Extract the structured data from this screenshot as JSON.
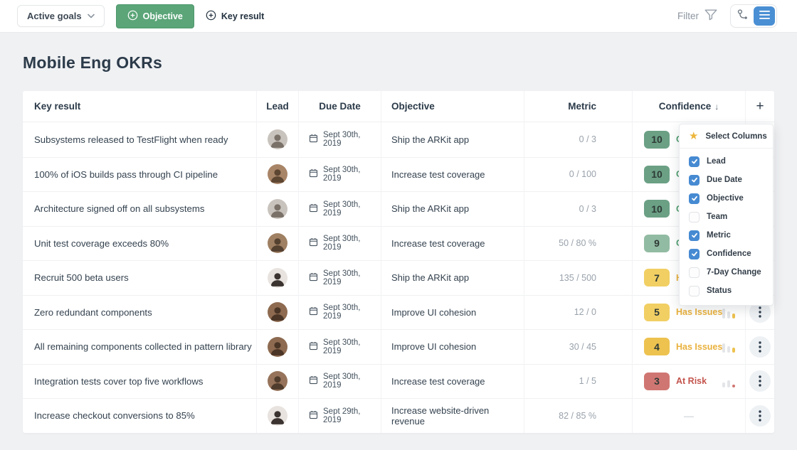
{
  "toolbar": {
    "scope_selector": "Active goals",
    "objective_button": "Objective",
    "key_result_button": "Key result",
    "filter_label": "Filter"
  },
  "page": {
    "title": "Mobile Eng OKRs"
  },
  "table": {
    "columns": {
      "key_result": "Key result",
      "lead": "Lead",
      "due_date": "Due Date",
      "objective": "Objective",
      "metric": "Metric",
      "confidence": "Confidence"
    },
    "sort": {
      "column": "Confidence",
      "direction": "desc",
      "indicator": "↓"
    },
    "add_column_label": "+",
    "empty_value": "—",
    "rows": [
      {
        "key_result": "Subsystems released to TestFlight when ready",
        "due_date": "Sept 30th, 2019",
        "objective": "Ship the ARKit app",
        "metric": "0 / 3",
        "confidence": "10",
        "confidence_color": "#6ba085",
        "status": "On Track",
        "status_color": "#4f9e6e",
        "trend": [
          14,
          10,
          7
        ],
        "trend_color": "#6ba085",
        "avatar": {
          "bg": "#c9c3bd",
          "fg": "#7a7168"
        }
      },
      {
        "key_result": "100% of iOS builds pass through CI pipeline",
        "due_date": "Sept 30th, 2019",
        "objective": "Increase test coverage",
        "metric": "0 / 100",
        "confidence": "10",
        "confidence_color": "#6ba085",
        "status": "On Track",
        "status_color": "#4f9e6e",
        "trend": [
          14,
          10,
          7
        ],
        "trend_color": "#6ba085",
        "avatar": {
          "bg": "#a98568",
          "fg": "#5d4632"
        }
      },
      {
        "key_result": "Architecture signed off on all subsystems",
        "due_date": "Sept 30th, 2019",
        "objective": "Ship the ARKit app",
        "metric": "0 / 3",
        "confidence": "10",
        "confidence_color": "#6ba085",
        "status": "On Track",
        "status_color": "#4f9e6e",
        "trend": [
          14,
          10,
          7
        ],
        "trend_color": "#6ba085",
        "avatar": {
          "bg": "#c9c3bd",
          "fg": "#7a7168"
        }
      },
      {
        "key_result": "Unit test coverage exceeds 80%",
        "due_date": "Sept 30th, 2019",
        "objective": "Increase test coverage",
        "metric": "50 / 80 %",
        "confidence": "9",
        "confidence_color": "#92bba3",
        "status": "On Track",
        "status_color": "#4f9e6e",
        "trend": [
          14,
          10,
          7
        ],
        "trend_color": "#6ba085",
        "avatar": {
          "bg": "#a08063",
          "fg": "#554130"
        }
      },
      {
        "key_result": "Recruit 500 beta users",
        "due_date": "Sept 30th, 2019",
        "objective": "Ship the ARKit app",
        "metric": "135 / 500",
        "confidence": "7",
        "confidence_color": "#f1cf63",
        "status": "Has Issues",
        "status_color": "#e9b13c",
        "trend": [
          14,
          10,
          7
        ],
        "trend_color": "#edc24f",
        "avatar": {
          "bg": "#e8e3df",
          "fg": "#3a3330"
        }
      },
      {
        "key_result": "Zero redundant components",
        "due_date": "Sept 30th, 2019",
        "objective": "Improve UI cohesion",
        "metric": "12 / 0",
        "confidence": "5",
        "confidence_color": "#f1cf63",
        "status": "Has Issues",
        "status_color": "#e9b13c",
        "trend": [
          14,
          10,
          7
        ],
        "trend_color": "#edc24f",
        "avatar": {
          "bg": "#8d6a50",
          "fg": "#4a3526"
        }
      },
      {
        "key_result": "All remaining components collected in pattern library",
        "due_date": "Sept 30th, 2019",
        "objective": "Improve UI cohesion",
        "metric": "30 / 45",
        "confidence": "4",
        "confidence_color": "#edc24f",
        "status": "Has Issues",
        "status_color": "#e9b13c",
        "trend": [
          13,
          9,
          7
        ],
        "trend_color": "#edc24f",
        "avatar": {
          "bg": "#8d6a50",
          "fg": "#4a3526"
        }
      },
      {
        "key_result": "Integration tests cover top five workflows",
        "due_date": "Sept 30th, 2019",
        "objective": "Increase test coverage",
        "metric": "1 / 5",
        "confidence": "3",
        "confidence_color": "#d07672",
        "status": "At Risk",
        "status_color": "#c4544d",
        "trend": [
          7,
          10,
          4
        ],
        "trend_color": "#d07672",
        "avatar": {
          "bg": "#96735a",
          "fg": "#503c2c"
        }
      },
      {
        "key_result": "Increase checkout conversions to 85%",
        "due_date": "Sept 29th, 2019",
        "objective": "Increase website-driven revenue",
        "metric": "82 / 85 %",
        "confidence": null,
        "confidence_color": null,
        "status": null,
        "status_color": null,
        "trend": null,
        "trend_color": null,
        "avatar": {
          "bg": "#e8e3df",
          "fg": "#3a3330"
        }
      }
    ]
  },
  "column_menu": {
    "title": "Select Columns",
    "items": [
      {
        "label": "Lead",
        "checked": true
      },
      {
        "label": "Due Date",
        "checked": true
      },
      {
        "label": "Objective",
        "checked": true
      },
      {
        "label": "Team",
        "checked": false
      },
      {
        "label": "Metric",
        "checked": true
      },
      {
        "label": "Confidence",
        "checked": true
      },
      {
        "label": "7-Day Change",
        "checked": false
      },
      {
        "label": "Status",
        "checked": false
      }
    ]
  },
  "icons": {
    "scope_chevron": "chevron-down-icon",
    "objective_plus": "plus-circle-icon",
    "filter": "funnel-icon",
    "hierarchy_view": "branch-icon",
    "list_view": "hamburger-icon",
    "favorite": "star-icon",
    "date": "calendar-icon",
    "row_menu": "kebab-icon"
  },
  "colors": {
    "accent_blue": "#4a8fd4",
    "accent_green": "#5ba578",
    "on_track": "#4f9e6e",
    "has_issues": "#e9b13c",
    "at_risk": "#c4544d",
    "checkbox_checked": "#468ad2",
    "star": "#ecb63c"
  }
}
